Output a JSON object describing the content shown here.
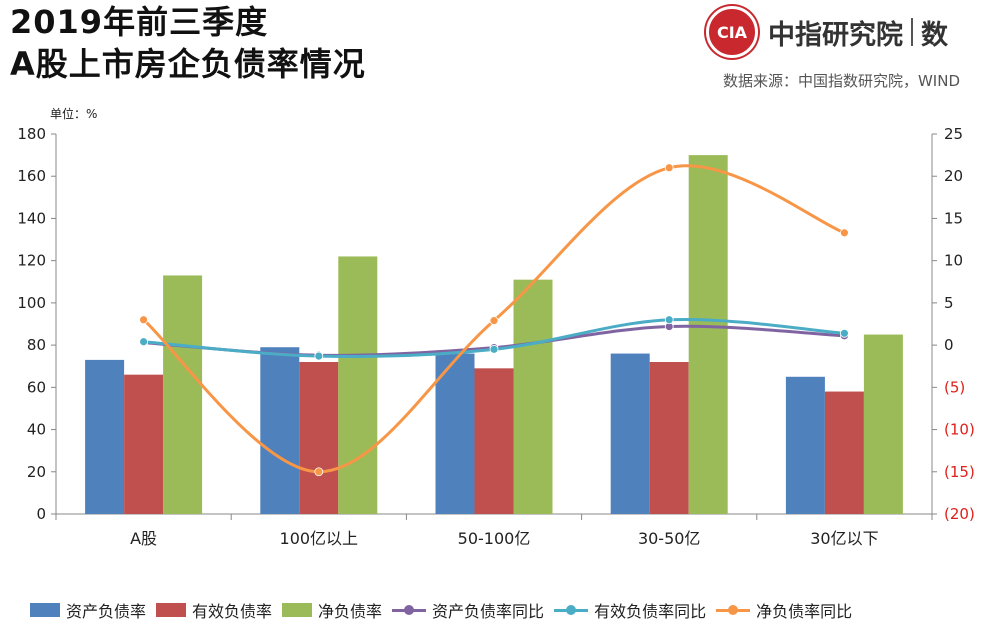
{
  "header": {
    "title_line1": "2019年前三季度",
    "title_line2": "A股上市房企负债率情况",
    "brand_name": "中指研究院",
    "brand_sub": "数",
    "source": "数据来源：中国指数研究院，WIND"
  },
  "chart_data": {
    "type": "bar",
    "unit_label": "单位：%",
    "categories": [
      "A股",
      "100亿以上",
      "50-100亿",
      "30-50亿",
      "30亿以下"
    ],
    "left_axis": {
      "min": 0,
      "max": 180,
      "ticks": [
        "0",
        "20",
        "40",
        "60",
        "80",
        "100",
        "120",
        "140",
        "160",
        "180"
      ]
    },
    "right_axis": {
      "min": -20,
      "max": 25,
      "ticks": [
        "(20)",
        "(15)",
        "(10)",
        "(5)",
        "0",
        "5",
        "10",
        "15",
        "20",
        "25"
      ]
    },
    "bar_series": [
      {
        "name": "资产负债率",
        "color": "#4f81bd",
        "values": [
          73,
          79,
          76,
          76,
          65
        ]
      },
      {
        "name": "有效负债率",
        "color": "#c0504d",
        "values": [
          66,
          72,
          69,
          72,
          58
        ]
      },
      {
        "name": "净负债率",
        "color": "#9bbb59",
        "values": [
          113,
          122,
          111,
          170,
          85
        ]
      }
    ],
    "line_series": [
      {
        "name": "资产负债率同比",
        "color": "#8064a2",
        "axis": "right",
        "values": [
          0.3,
          -1.2,
          -0.3,
          2.2,
          1.1
        ]
      },
      {
        "name": "有效负债率同比",
        "color": "#4bacc6",
        "axis": "right",
        "values": [
          0.4,
          -1.3,
          -0.5,
          3.0,
          1.4
        ]
      },
      {
        "name": "净负债率同比",
        "color": "#f79646",
        "axis": "right",
        "values": [
          3.0,
          -15.0,
          2.9,
          21.0,
          13.3
        ]
      }
    ],
    "grid": false,
    "legend_position": "bottom"
  }
}
